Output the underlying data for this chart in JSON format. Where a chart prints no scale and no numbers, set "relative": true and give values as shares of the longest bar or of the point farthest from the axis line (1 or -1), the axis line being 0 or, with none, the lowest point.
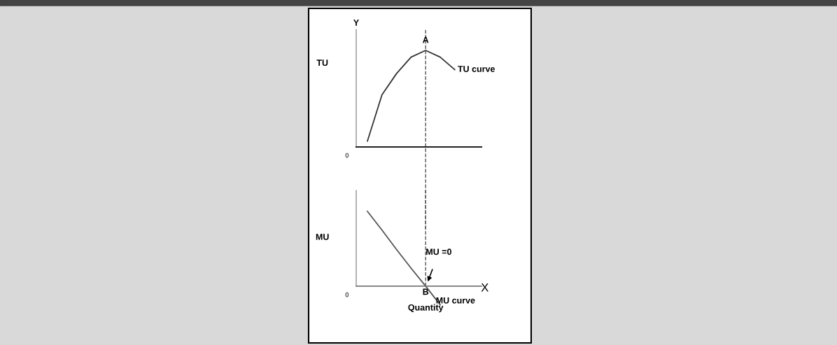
{
  "chart_data": [
    {
      "type": "line",
      "relative": true,
      "ylabel": "TU",
      "categories": [
        null,
        null,
        null,
        null,
        null,
        null,
        null
      ],
      "series": [
        {
          "color": "#333333",
          "values": [
            0.06,
            0.54,
            0.76,
            0.93,
            1,
            0.93,
            0.8
          ]
        }
      ],
      "annotations": [
        "Y",
        "0",
        "A",
        "TU curve"
      ],
      "line_style": "solid"
    },
    {
      "type": "line",
      "relative": true,
      "ylabel": "MU",
      "xlabel": "Quantity",
      "categories": [
        null,
        null,
        null,
        null,
        null,
        null,
        null
      ],
      "series": [
        {
          "color": "#555555",
          "values": [
            1,
            0.75,
            0.49,
            0.24,
            0,
            -0.25,
            null
          ]
        }
      ],
      "annotations": [
        "0",
        "X",
        "B",
        "MU =0",
        "MU curve"
      ],
      "line_style": "solid"
    }
  ]
}
